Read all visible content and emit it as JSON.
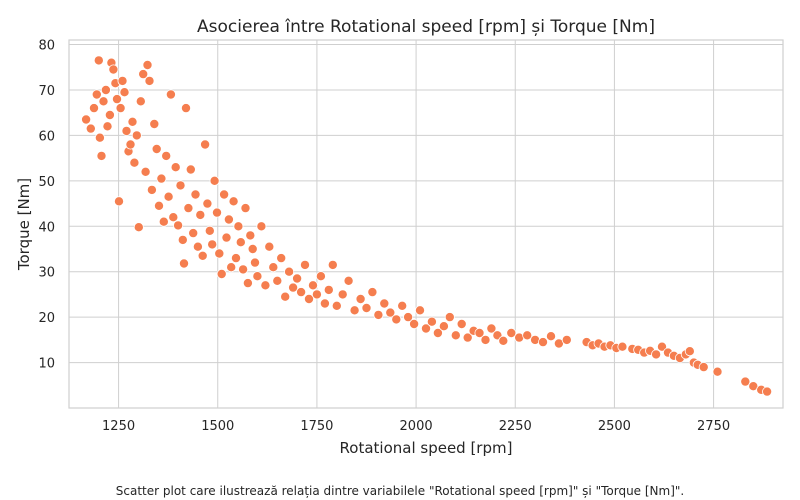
{
  "caption": "Scatter plot care ilustrează relația dintre variabilele \"Rotational speed [rpm]\" și \"Torque [Nm]\".",
  "colors": {
    "point": "#f57e4f",
    "point_edge": "#ffffff",
    "grid": "#cfcfcf",
    "frame": "#cfcfcf"
  },
  "chart_data": {
    "type": "scatter",
    "title": "Asocierea între Rotational speed [rpm] și Torque [Nm]",
    "xlabel": "Rotational speed [rpm]",
    "ylabel": "Torque [Nm]",
    "xlim": [
      1125,
      2925
    ],
    "ylim": [
      0,
      81
    ],
    "xticks": [
      1250,
      1500,
      1750,
      2000,
      2250,
      2500,
      2750
    ],
    "yticks": [
      10,
      20,
      30,
      40,
      50,
      60,
      70,
      80
    ],
    "grid": true,
    "points": [
      [
        1168,
        63.5
      ],
      [
        1180,
        61.5
      ],
      [
        1188,
        66
      ],
      [
        1195,
        69
      ],
      [
        1200,
        76.5
      ],
      [
        1203,
        59.5
      ],
      [
        1207,
        55.5
      ],
      [
        1212,
        67.5
      ],
      [
        1218,
        70
      ],
      [
        1222,
        62
      ],
      [
        1228,
        64.5
      ],
      [
        1232,
        76
      ],
      [
        1237,
        74.5
      ],
      [
        1242,
        71.5
      ],
      [
        1246,
        68
      ],
      [
        1251,
        45.5
      ],
      [
        1255,
        66
      ],
      [
        1260,
        72
      ],
      [
        1265,
        69.5
      ],
      [
        1270,
        61
      ],
      [
        1275,
        56.5
      ],
      [
        1280,
        58
      ],
      [
        1285,
        63
      ],
      [
        1290,
        54
      ],
      [
        1296,
        60
      ],
      [
        1301,
        39.8
      ],
      [
        1306,
        67.5
      ],
      [
        1312,
        73.5
      ],
      [
        1318,
        52
      ],
      [
        1323,
        75.5
      ],
      [
        1328,
        72
      ],
      [
        1334,
        48
      ],
      [
        1340,
        62.5
      ],
      [
        1346,
        57
      ],
      [
        1352,
        44.5
      ],
      [
        1358,
        50.5
      ],
      [
        1364,
        41
      ],
      [
        1370,
        55.5
      ],
      [
        1376,
        46.5
      ],
      [
        1382,
        69
      ],
      [
        1388,
        42
      ],
      [
        1394,
        53
      ],
      [
        1400,
        40.2
      ],
      [
        1406,
        49
      ],
      [
        1412,
        37
      ],
      [
        1415,
        31.8
      ],
      [
        1420,
        66
      ],
      [
        1426,
        44
      ],
      [
        1432,
        52.5
      ],
      [
        1438,
        38.5
      ],
      [
        1444,
        47
      ],
      [
        1450,
        35.5
      ],
      [
        1456,
        42.5
      ],
      [
        1462,
        33.5
      ],
      [
        1468,
        58
      ],
      [
        1474,
        45
      ],
      [
        1480,
        39
      ],
      [
        1486,
        36
      ],
      [
        1492,
        50
      ],
      [
        1498,
        43
      ],
      [
        1504,
        34
      ],
      [
        1510,
        29.5
      ],
      [
        1516,
        47
      ],
      [
        1522,
        37.5
      ],
      [
        1528,
        41.5
      ],
      [
        1534,
        31
      ],
      [
        1540,
        45.5
      ],
      [
        1546,
        33
      ],
      [
        1552,
        40
      ],
      [
        1558,
        36.5
      ],
      [
        1564,
        30.5
      ],
      [
        1570,
        44
      ],
      [
        1576,
        27.5
      ],
      [
        1582,
        38
      ],
      [
        1588,
        35
      ],
      [
        1594,
        32
      ],
      [
        1600,
        29
      ],
      [
        1610,
        40
      ],
      [
        1620,
        27
      ],
      [
        1630,
        35.5
      ],
      [
        1640,
        31
      ],
      [
        1650,
        28
      ],
      [
        1660,
        33
      ],
      [
        1670,
        24.5
      ],
      [
        1680,
        30
      ],
      [
        1690,
        26.5
      ],
      [
        1700,
        28.5
      ],
      [
        1710,
        25.5
      ],
      [
        1720,
        31.5
      ],
      [
        1730,
        24
      ],
      [
        1740,
        27
      ],
      [
        1750,
        25
      ],
      [
        1760,
        29
      ],
      [
        1770,
        23
      ],
      [
        1780,
        26
      ],
      [
        1790,
        31.5
      ],
      [
        1800,
        22.5
      ],
      [
        1815,
        25
      ],
      [
        1830,
        28
      ],
      [
        1845,
        21.5
      ],
      [
        1860,
        24
      ],
      [
        1875,
        22
      ],
      [
        1890,
        25.5
      ],
      [
        1905,
        20.5
      ],
      [
        1920,
        23
      ],
      [
        1935,
        21
      ],
      [
        1950,
        19.5
      ],
      [
        1965,
        22.5
      ],
      [
        1980,
        20
      ],
      [
        1995,
        18.5
      ],
      [
        2010,
        21.5
      ],
      [
        2025,
        17.5
      ],
      [
        2040,
        19
      ],
      [
        2055,
        16.5
      ],
      [
        2070,
        18
      ],
      [
        2085,
        20
      ],
      [
        2100,
        16
      ],
      [
        2115,
        18.5
      ],
      [
        2130,
        15.5
      ],
      [
        2145,
        17
      ],
      [
        2160,
        16.5
      ],
      [
        2175,
        15
      ],
      [
        2190,
        17.5
      ],
      [
        2205,
        16
      ],
      [
        2220,
        14.8
      ],
      [
        2240,
        16.5
      ],
      [
        2260,
        15.5
      ],
      [
        2280,
        16
      ],
      [
        2300,
        15
      ],
      [
        2320,
        14.5
      ],
      [
        2340,
        15.8
      ],
      [
        2360,
        14.2
      ],
      [
        2380,
        15
      ],
      [
        2430,
        14.5
      ],
      [
        2445,
        13.8
      ],
      [
        2460,
        14.2
      ],
      [
        2475,
        13.5
      ],
      [
        2490,
        13.8
      ],
      [
        2505,
        13.2
      ],
      [
        2520,
        13.5
      ],
      [
        2545,
        13
      ],
      [
        2560,
        12.8
      ],
      [
        2575,
        12.2
      ],
      [
        2590,
        12.6
      ],
      [
        2605,
        11.8
      ],
      [
        2620,
        13.5
      ],
      [
        2635,
        12.2
      ],
      [
        2650,
        11.5
      ],
      [
        2665,
        11
      ],
      [
        2680,
        11.8
      ],
      [
        2690,
        12.5
      ],
      [
        2700,
        10
      ],
      [
        2710,
        9.5
      ],
      [
        2725,
        9
      ],
      [
        2760,
        8
      ],
      [
        2830,
        5.8
      ],
      [
        2850,
        4.8
      ],
      [
        2870,
        4
      ],
      [
        2885,
        3.6
      ]
    ]
  }
}
